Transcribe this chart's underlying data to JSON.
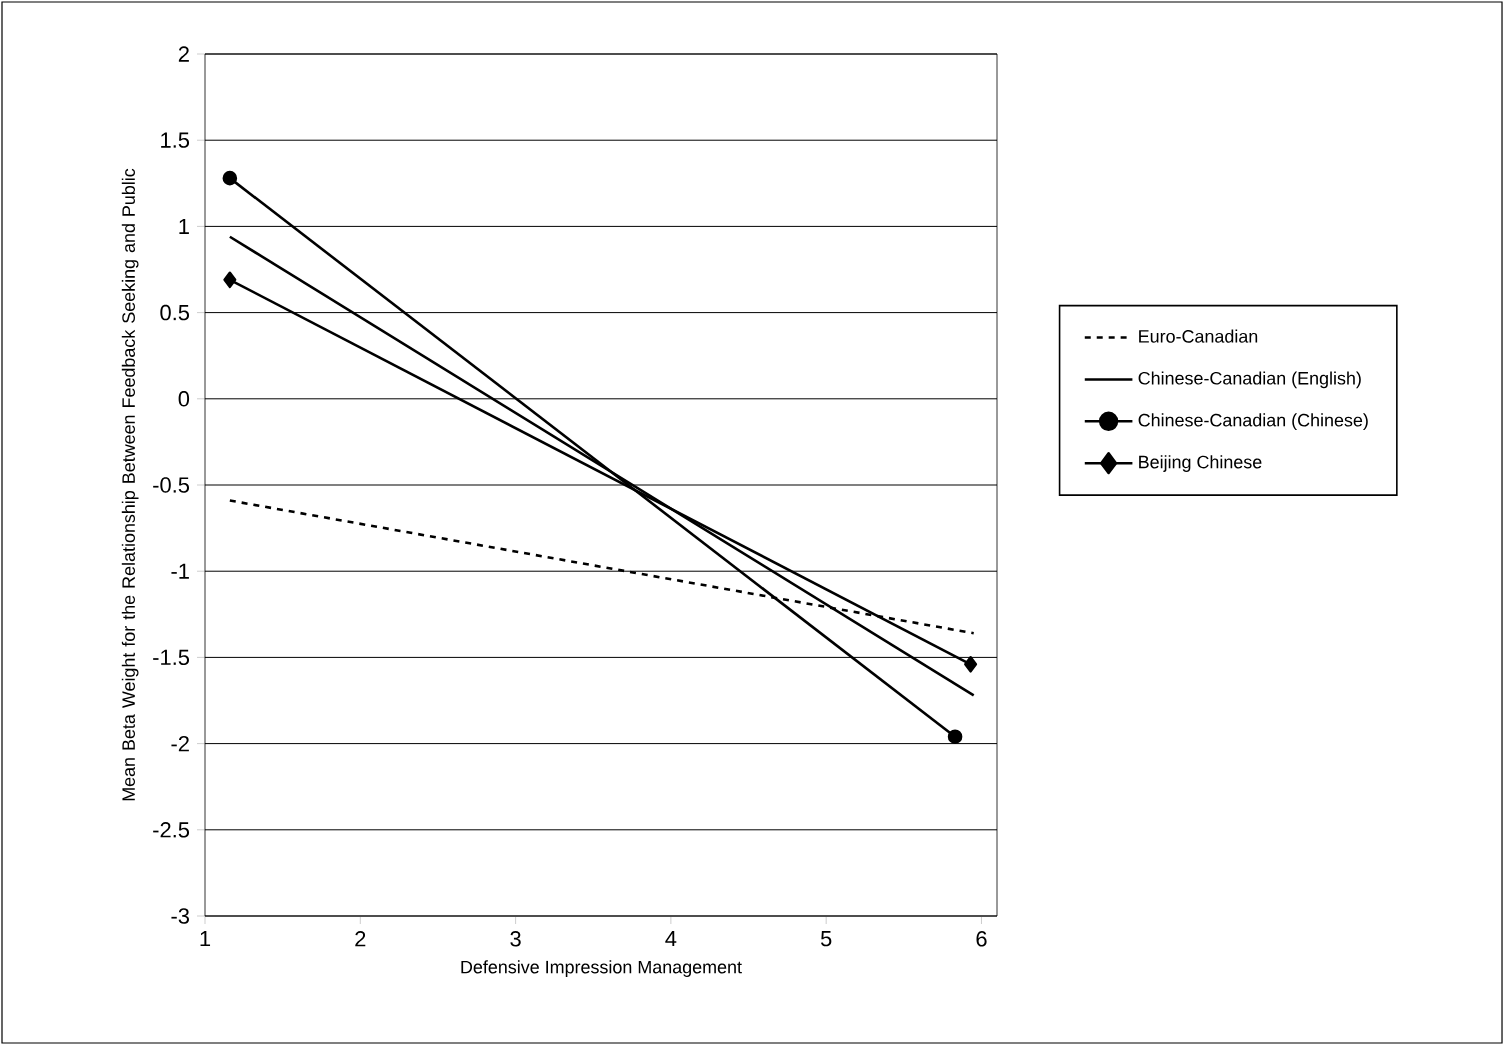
{
  "chart_data": {
    "type": "line",
    "xlabel": "Defensive Impression Management",
    "ylabel": "Mean Beta Weight for the Relationship Between Feedback Seeking and Public",
    "xlim": [
      1,
      6.1
    ],
    "ylim": [
      -3,
      2
    ],
    "xticks": [
      1,
      2,
      3,
      4,
      5,
      6
    ],
    "yticks": [
      -3,
      -2.5,
      -2,
      -1.5,
      -1,
      -0.5,
      0,
      0.5,
      1,
      1.5,
      2
    ],
    "grid": "y",
    "legend": "right",
    "series": [
      {
        "name": "Euro-Canadian",
        "color": "#000000",
        "x": [
          1.16,
          5.95
        ],
        "values": [
          -0.59,
          -1.36
        ],
        "line_style": "dashed",
        "marker": "none"
      },
      {
        "name": "Chinese-Canadian (English)",
        "color": "#000000",
        "x": [
          1.16,
          5.95
        ],
        "values": [
          0.94,
          -1.72
        ],
        "line_style": "solid",
        "marker": "none"
      },
      {
        "name": "Chinese-Canadian (Chinese)",
        "color": "#000000",
        "x": [
          1.16,
          5.83
        ],
        "values": [
          1.28,
          -1.96
        ],
        "line_style": "solid",
        "marker": "circle"
      },
      {
        "name": "Beijing Chinese",
        "color": "#000000",
        "x": [
          1.16,
          5.93
        ],
        "values": [
          0.69,
          -1.54
        ],
        "line_style": "solid",
        "marker": "diamond"
      }
    ]
  }
}
